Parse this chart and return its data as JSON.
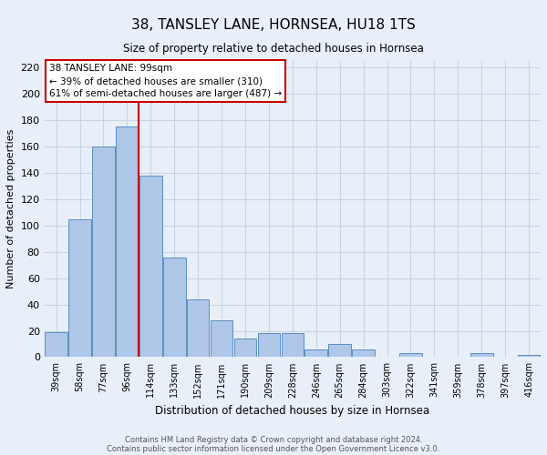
{
  "title": "38, TANSLEY LANE, HORNSEA, HU18 1TS",
  "subtitle": "Size of property relative to detached houses in Hornsea",
  "xlabel": "Distribution of detached houses by size in Hornsea",
  "ylabel": "Number of detached properties",
  "bar_labels": [
    "39sqm",
    "58sqm",
    "77sqm",
    "96sqm",
    "114sqm",
    "133sqm",
    "152sqm",
    "171sqm",
    "190sqm",
    "209sqm",
    "228sqm",
    "246sqm",
    "265sqm",
    "284sqm",
    "303sqm",
    "322sqm",
    "341sqm",
    "359sqm",
    "378sqm",
    "397sqm",
    "416sqm"
  ],
  "bar_values": [
    19,
    105,
    160,
    175,
    138,
    76,
    44,
    28,
    14,
    18,
    18,
    6,
    10,
    6,
    0,
    3,
    0,
    0,
    3,
    0,
    2
  ],
  "bar_color": "#aec6e8",
  "bar_edge_color": "#5a8fc0",
  "property_line_color": "#cc0000",
  "annotation_title": "38 TANSLEY LANE: 99sqm",
  "annotation_line1": "← 39% of detached houses are smaller (310)",
  "annotation_line2": "61% of semi-detached houses are larger (487) →",
  "annotation_box_color": "#ffffff",
  "annotation_box_edge": "#cc0000",
  "ylim": [
    0,
    225
  ],
  "yticks": [
    0,
    20,
    40,
    60,
    80,
    100,
    120,
    140,
    160,
    180,
    200,
    220
  ],
  "grid_color": "#c8d4e0",
  "background_color": "#e8eff8",
  "footer1": "Contains HM Land Registry data © Crown copyright and database right 2024.",
  "footer2": "Contains public sector information licensed under the Open Government Licence v3.0."
}
